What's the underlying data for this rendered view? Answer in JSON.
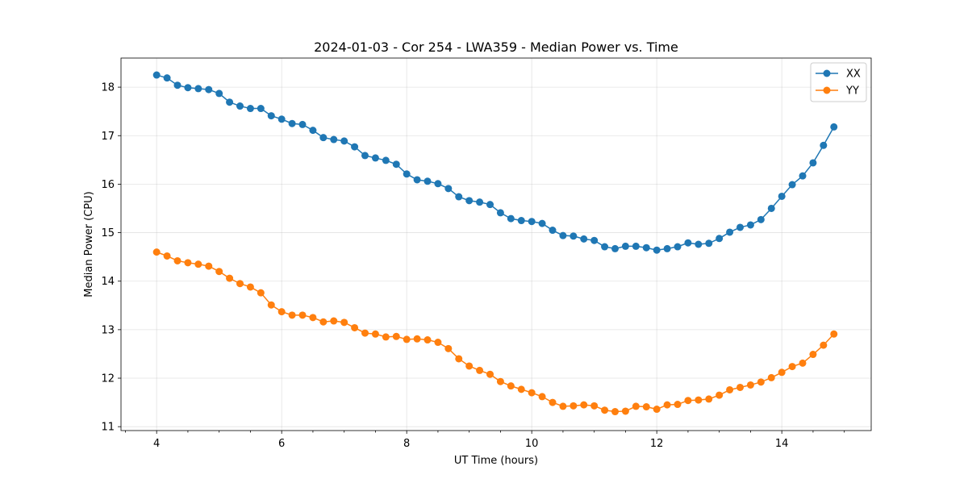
{
  "chart_data": {
    "type": "line",
    "title": "2024-01-03 - Cor 254 - LWA359 - Median Power vs. Time",
    "xlabel": "UT Time (hours)",
    "ylabel": "Median Power (CPU)",
    "xlim": [
      3.43,
      15.43
    ],
    "ylim": [
      10.92,
      18.6
    ],
    "xticks": [
      4,
      6,
      8,
      10,
      12,
      14
    ],
    "yticks": [
      11,
      12,
      13,
      14,
      15,
      16,
      17,
      18
    ],
    "xticks_minor": [
      3.5,
      4.5,
      5,
      5.5,
      6.5,
      7,
      7.5,
      8.5,
      9,
      9.5,
      10.5,
      11,
      11.5,
      12.5,
      13,
      13.5,
      14.5,
      15
    ],
    "grid": true,
    "legend_position": "upper right",
    "x": [
      4.0,
      4.1667,
      4.3333,
      4.5,
      4.6667,
      4.8333,
      5.0,
      5.1667,
      5.3333,
      5.5,
      5.6667,
      5.8333,
      6.0,
      6.1667,
      6.3333,
      6.5,
      6.6667,
      6.8333,
      7.0,
      7.1667,
      7.3333,
      7.5,
      7.6667,
      7.8333,
      8.0,
      8.1667,
      8.3333,
      8.5,
      8.6667,
      8.8333,
      9.0,
      9.1667,
      9.3333,
      9.5,
      9.6667,
      9.8333,
      10.0,
      10.1667,
      10.3333,
      10.5,
      10.6667,
      10.8333,
      11.0,
      11.1667,
      11.3333,
      11.5,
      11.6667,
      11.8333,
      12.0,
      12.1667,
      12.3333,
      12.5,
      12.6667,
      12.8333,
      13.0,
      13.1667,
      13.3333,
      13.5,
      13.6667,
      13.8333,
      14.0,
      14.1667,
      14.3333,
      14.5,
      14.6667,
      14.8333
    ],
    "series": [
      {
        "name": "XX",
        "color": "#1f77b4",
        "values": [
          18.25,
          18.19,
          18.04,
          17.99,
          17.97,
          17.95,
          17.87,
          17.69,
          17.61,
          17.56,
          17.56,
          17.41,
          17.34,
          17.25,
          17.23,
          17.11,
          16.96,
          16.92,
          16.89,
          16.77,
          16.59,
          16.54,
          16.49,
          16.41,
          16.21,
          16.09,
          16.06,
          16.01,
          15.91,
          15.74,
          15.66,
          15.63,
          15.58,
          15.41,
          15.29,
          15.25,
          15.23,
          15.19,
          15.05,
          14.94,
          14.93,
          14.87,
          14.84,
          14.71,
          14.67,
          14.72,
          14.72,
          14.69,
          14.64,
          14.67,
          14.71,
          14.79,
          14.76,
          14.78,
          14.88,
          15.01,
          15.11,
          15.16,
          15.27,
          15.5,
          15.75,
          15.99,
          16.17,
          16.44,
          16.8,
          17.18
        ]
      },
      {
        "name": "YY",
        "color": "#ff7f0e",
        "values": [
          14.6,
          14.52,
          14.42,
          14.38,
          14.35,
          14.31,
          14.2,
          14.06,
          13.95,
          13.88,
          13.76,
          13.51,
          13.37,
          13.3,
          13.3,
          13.25,
          13.16,
          13.18,
          13.15,
          13.04,
          12.93,
          12.91,
          12.85,
          12.86,
          12.8,
          12.81,
          12.79,
          12.74,
          12.61,
          12.4,
          12.25,
          12.16,
          12.08,
          11.93,
          11.84,
          11.77,
          11.7,
          11.62,
          11.5,
          11.42,
          11.43,
          11.45,
          11.43,
          11.34,
          11.31,
          11.32,
          11.42,
          11.41,
          11.36,
          11.45,
          11.46,
          11.54,
          11.55,
          11.57,
          11.65,
          11.76,
          11.81,
          11.86,
          11.92,
          12.01,
          12.12,
          12.24,
          12.31,
          12.49,
          12.68,
          12.91
        ]
      }
    ]
  }
}
